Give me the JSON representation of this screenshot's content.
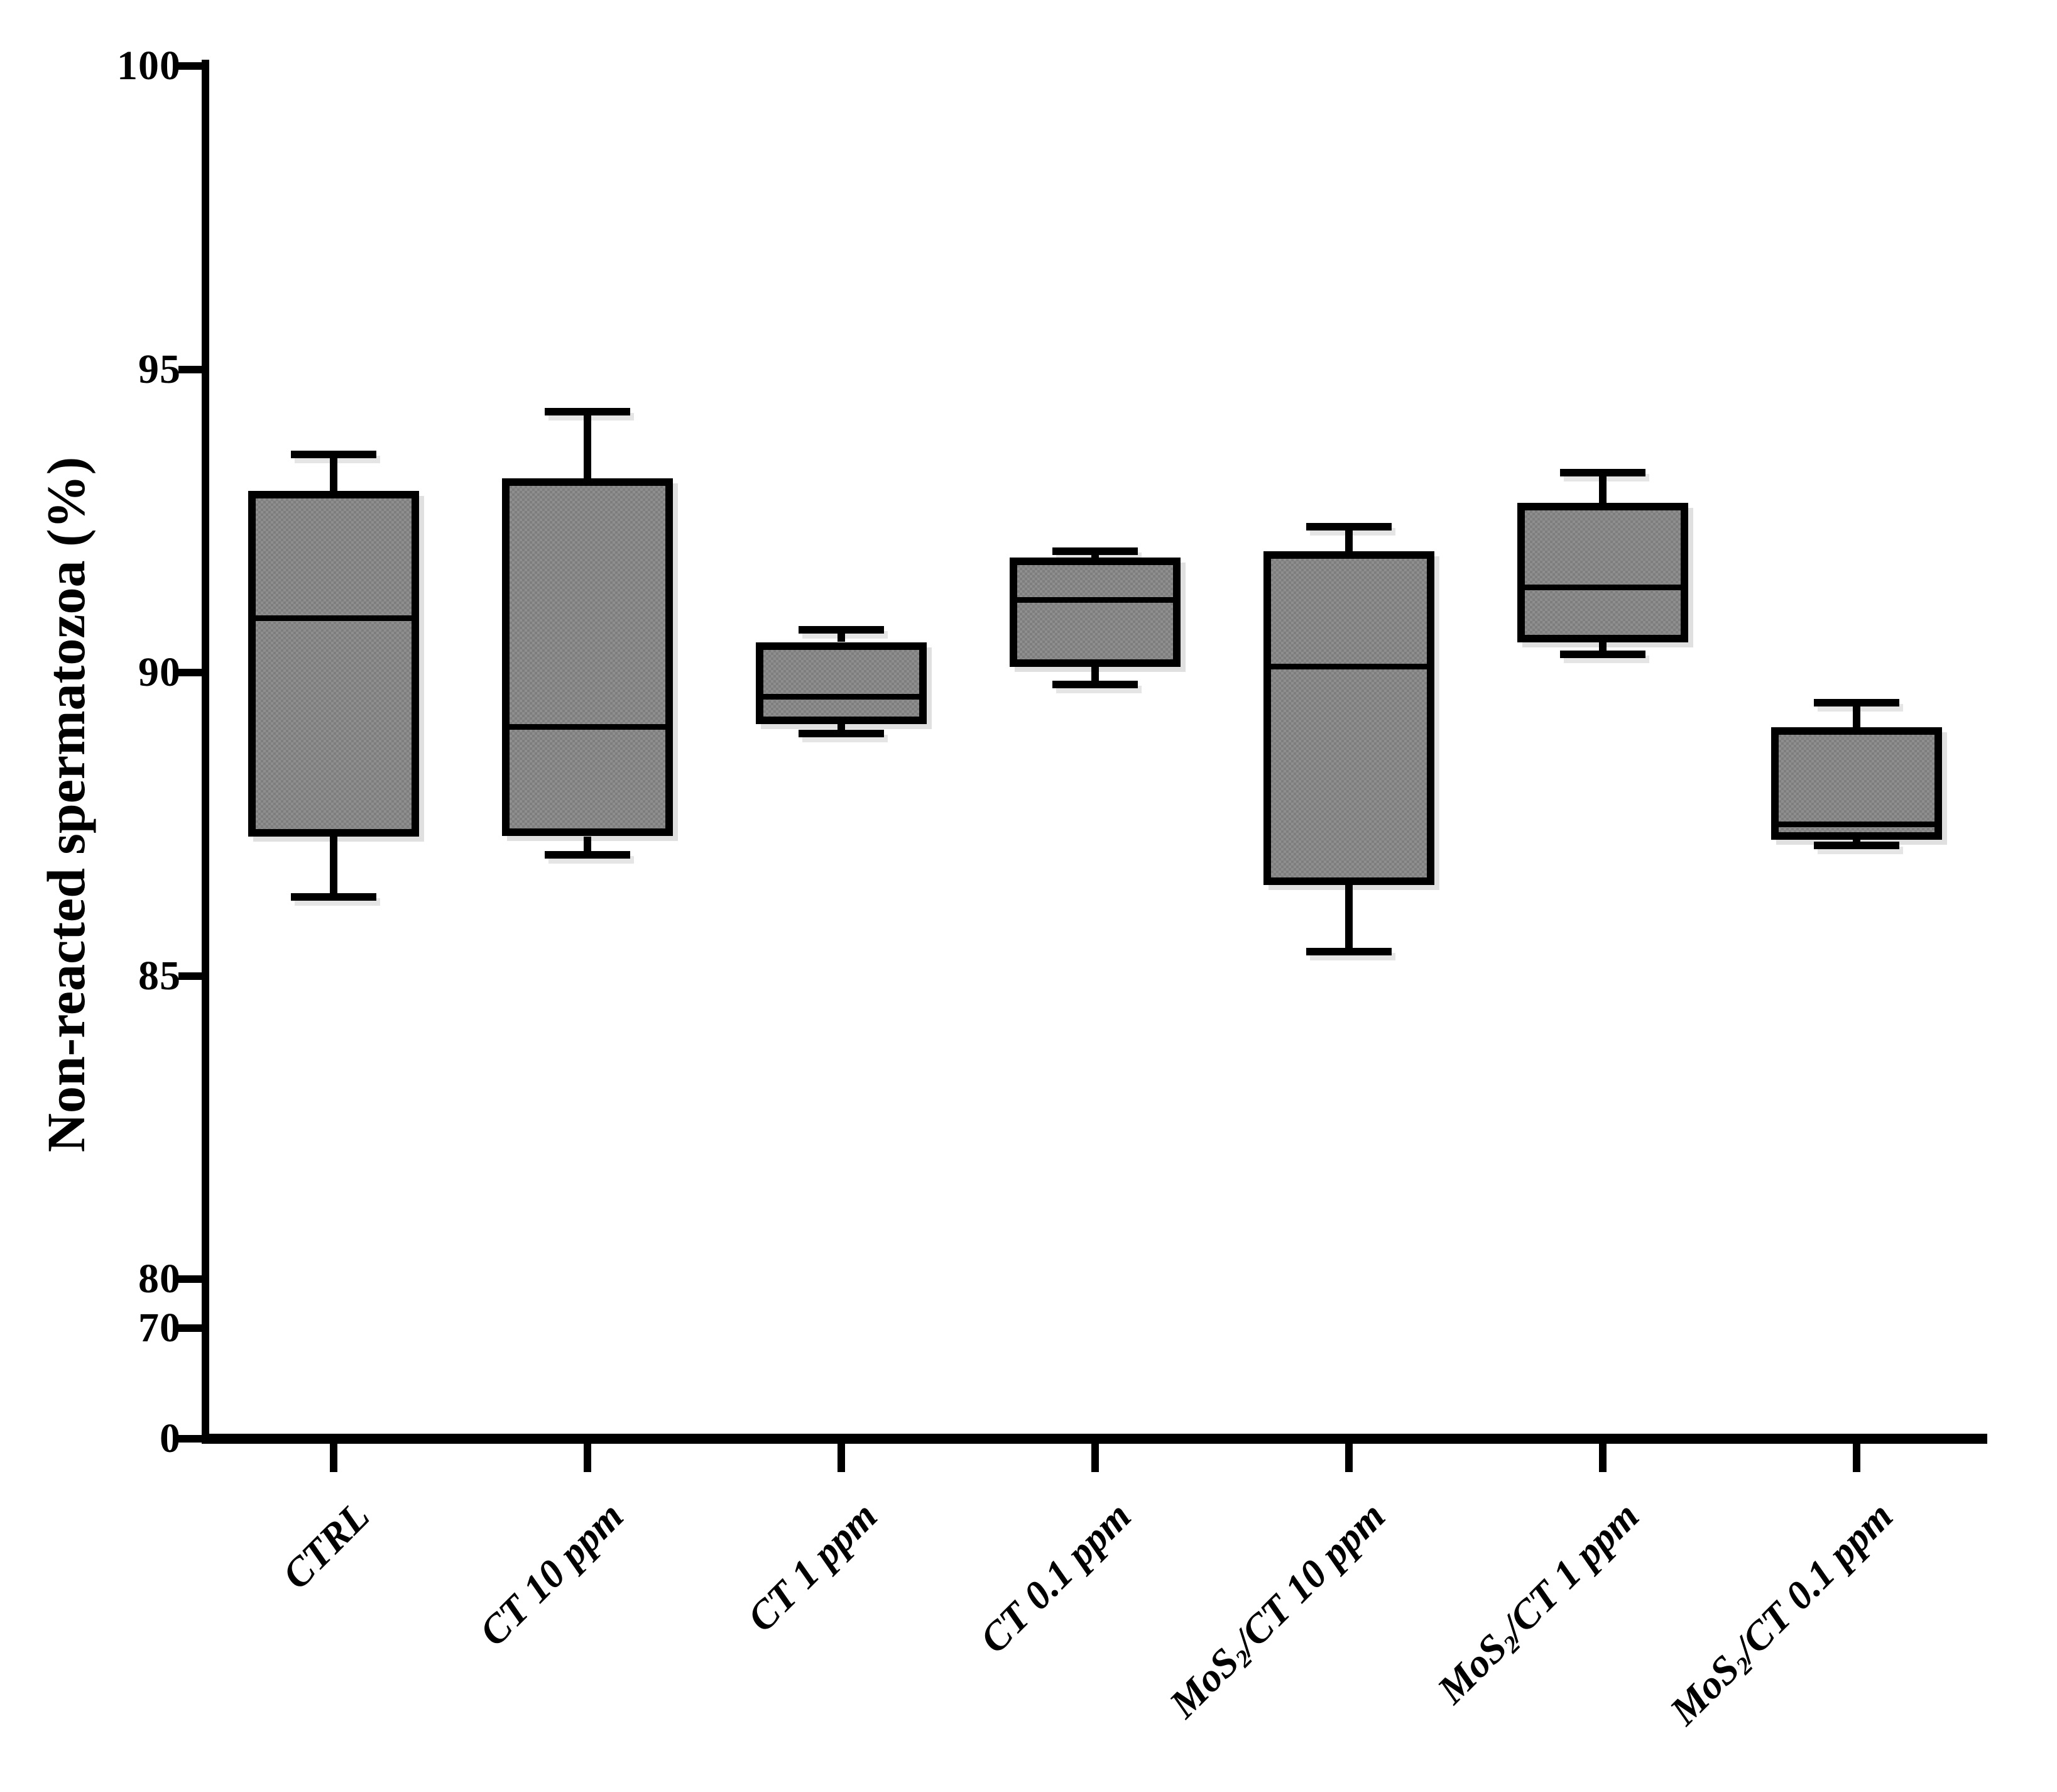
{
  "figure": {
    "background": "#ffffff",
    "ink_color": "#000000",
    "box_fill_color": "#7e7e7e",
    "box_fill_texture_color": "#8e8e8e"
  },
  "y_axis": {
    "title": "Non-reacted spermatozoa (%)",
    "ticks": [
      {
        "label": "100",
        "value": 100
      },
      {
        "label": "95",
        "value": 95
      },
      {
        "label": "90",
        "value": 90
      },
      {
        "label": "85",
        "value": 85
      },
      {
        "label": "80",
        "value": 80
      },
      {
        "label": "70",
        "value": 70
      },
      {
        "label": "0",
        "value": 0
      }
    ]
  },
  "x_axis": {
    "category_label_parts": [
      {
        "pre": "CTRL",
        "sub": "",
        "post": ""
      },
      {
        "pre": "CT 10 ppm",
        "sub": "",
        "post": ""
      },
      {
        "pre": "CT 1 ppm",
        "sub": "",
        "post": ""
      },
      {
        "pre": "CT 0.1 ppm",
        "sub": "",
        "post": ""
      },
      {
        "pre": "MoS",
        "sub": "2",
        "post": "/CT 10 ppm"
      },
      {
        "pre": "MoS",
        "sub": "2",
        "post": "/CT 1 ppm"
      },
      {
        "pre": "MoS",
        "sub": "2",
        "post": "/CT 0.1 ppm"
      }
    ]
  },
  "chart_data": {
    "type": "box",
    "title": "",
    "xlabel": "",
    "ylabel": "Non-reacted spermatozoa (%)",
    "categories": [
      "CTRL",
      "CT 10 ppm",
      "CT 1 ppm",
      "CT 0.1 ppm",
      "MoS2/CT 10 ppm",
      "MoS2/CT 1 ppm",
      "MoS2/CT 0.1 ppm"
    ],
    "y_ticks": [
      0,
      70,
      80,
      85,
      90,
      95,
      100
    ],
    "ylim": [
      0,
      100
    ],
    "axis_note": "y-axis is segmented/compressed below 80 (ticks 0 and 70 sit just under 80)",
    "grid": false,
    "legend": false,
    "boxes": [
      {
        "category": "CTRL",
        "min": 86.3,
        "q1": 87.3,
        "median": 90.9,
        "q3": 93.0,
        "max": 93.6
      },
      {
        "category": "CT 10 ppm",
        "min": 87.0,
        "q1": 87.3,
        "median": 89.1,
        "q3": 93.2,
        "max": 94.3
      },
      {
        "category": "CT 1 ppm",
        "min": 89.0,
        "q1": 89.15,
        "median": 89.6,
        "q3": 90.5,
        "max": 90.7
      },
      {
        "category": "CT 0.1 ppm",
        "min": 89.8,
        "q1": 90.1,
        "median": 91.2,
        "q3": 91.9,
        "max": 92.0
      },
      {
        "category": "MoS2/CT 10 ppm",
        "min": 85.4,
        "q1": 86.5,
        "median": 90.1,
        "q3": 92.0,
        "max": 92.4
      },
      {
        "category": "MoS2/CT 1 ppm",
        "min": 90.3,
        "q1": 90.5,
        "median": 91.4,
        "q3": 92.8,
        "max": 93.3
      },
      {
        "category": "MoS2/CT 0.1 ppm",
        "min": 87.15,
        "q1": 87.25,
        "median": 87.5,
        "q3": 89.1,
        "max": 89.5
      }
    ]
  }
}
